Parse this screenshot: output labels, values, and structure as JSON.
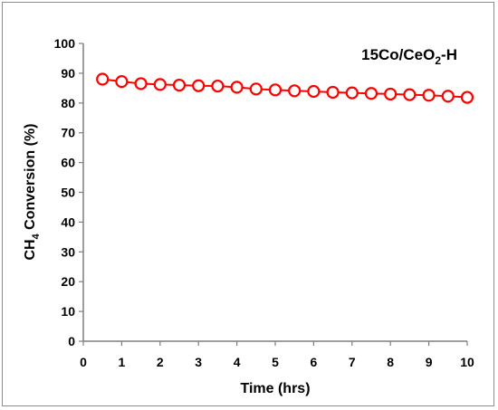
{
  "chart_data": {
    "type": "line",
    "title": "",
    "annotation": "15Co/CeO2-H",
    "annotation_parts": {
      "main": "15Co/CeO",
      "sub": "2",
      "tail": "-H"
    },
    "xlabel": "Time (hrs)",
    "ylabel_parts": {
      "main": "CH",
      "sub": "4",
      "tail": " Conversion (%)"
    },
    "xlim": [
      0,
      10
    ],
    "ylim": [
      0,
      100
    ],
    "xticks": [
      "0",
      "1",
      "2",
      "3",
      "4",
      "5",
      "6",
      "7",
      "8",
      "9",
      "10"
    ],
    "yticks": [
      "0",
      "10",
      "20",
      "30",
      "40",
      "50",
      "60",
      "70",
      "80",
      "90",
      "100"
    ],
    "grid": false,
    "legend": "none",
    "series": [
      {
        "color": "#ff0000",
        "marker": "open-circle",
        "x": [
          0.5,
          1,
          1.5,
          2,
          2.5,
          3,
          3.5,
          4,
          4.5,
          5,
          5.5,
          6,
          6.5,
          7,
          7.5,
          8,
          8.5,
          9,
          9.5,
          10
        ],
        "y": [
          88,
          87.2,
          86.5,
          86.2,
          86,
          85.8,
          85.7,
          85.3,
          84.7,
          84.4,
          84.1,
          83.9,
          83.6,
          83.4,
          83.2,
          83,
          82.8,
          82.6,
          82.3,
          81.9
        ]
      }
    ]
  }
}
